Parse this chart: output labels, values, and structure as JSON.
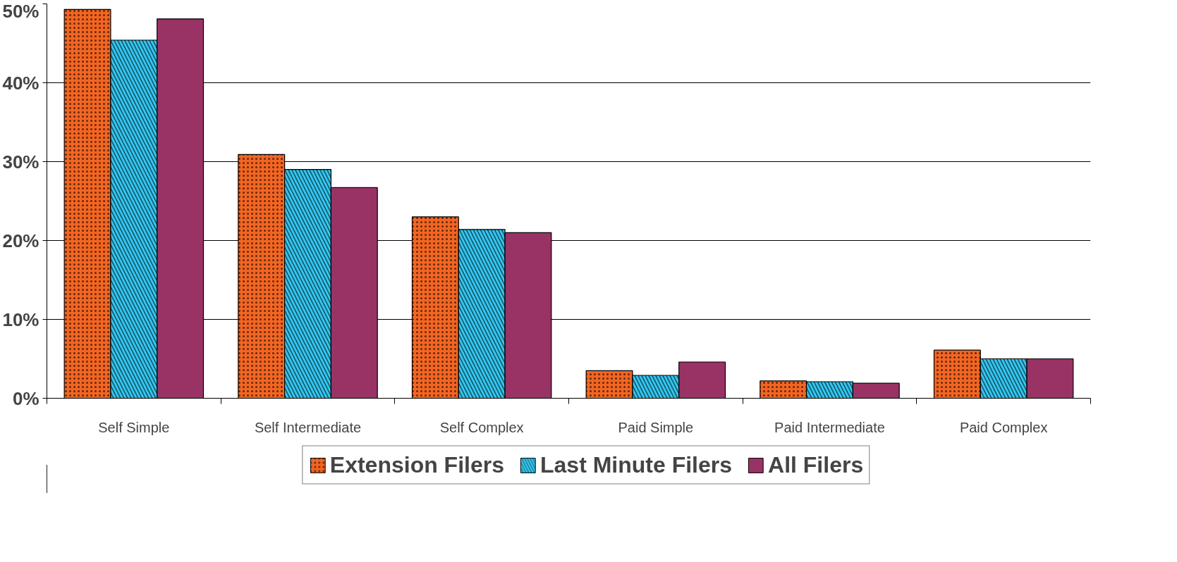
{
  "chart_data": {
    "type": "bar",
    "categories": [
      "Self Simple",
      "Self Intermediate",
      "Self Complex",
      "Paid Simple",
      "Paid Intermediate",
      "Paid Complex"
    ],
    "series": [
      {
        "name": "Extension Filers",
        "color": "#f26522",
        "values": [
          49.3,
          30.9,
          23.0,
          3.5,
          2.2,
          6.1
        ]
      },
      {
        "name": "Last Minute Filers",
        "color": "#33c6f0",
        "values": [
          45.4,
          29.0,
          21.4,
          2.9,
          2.1,
          5.0
        ]
      },
      {
        "name": "All Filers",
        "color": "#993366",
        "values": [
          48.1,
          26.7,
          21.0,
          4.6,
          1.9,
          5.0
        ]
      }
    ],
    "ylim": [
      0,
      50
    ],
    "yticks": [
      {
        "value": 0,
        "label": "0%"
      },
      {
        "value": 10,
        "label": "10%"
      },
      {
        "value": 20,
        "label": "20%"
      },
      {
        "value": 30,
        "label": "30%"
      },
      {
        "value": 40,
        "label": "40%"
      },
      {
        "value": 50,
        "label": "50%"
      }
    ],
    "grid": "y",
    "legend": "bottom"
  }
}
